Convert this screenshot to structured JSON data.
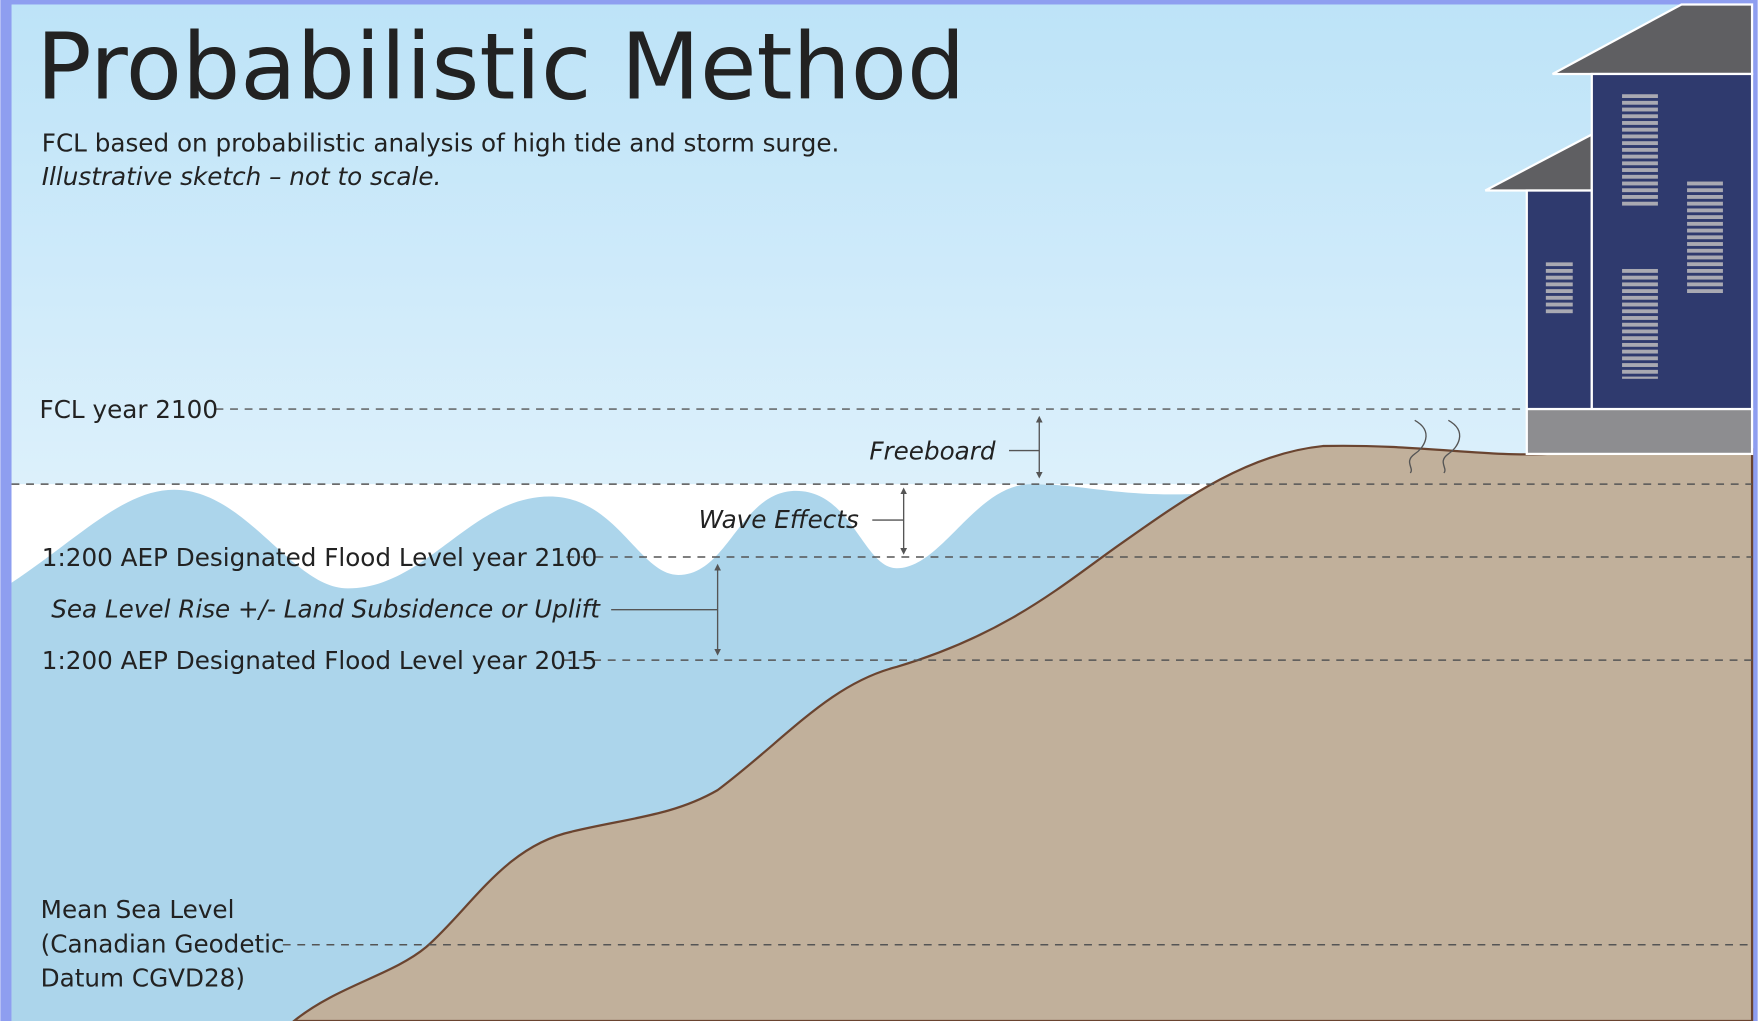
{
  "header": {
    "title": "Probabilistic Method",
    "subtitle": "FCL based on probabilistic analysis of high tide and storm surge.",
    "note": "Illustrative sketch – not to scale."
  },
  "levels": {
    "fcl_2100": "FCL year 2100",
    "dfl_2100": "1:200 AEP Designated Flood Level year 2100",
    "dfl_2015": "1:200 AEP Designated Flood Level year 2015",
    "msl": [
      "Mean Sea Level",
      "(Canadian Geodetic",
      "Datum CGVD28)"
    ]
  },
  "annotations": {
    "freeboard": "Freeboard",
    "wave_effects": "Wave Effects",
    "sea_level_rise": "Sea Level Rise +/- Land Subsidence or Uplift"
  }
}
